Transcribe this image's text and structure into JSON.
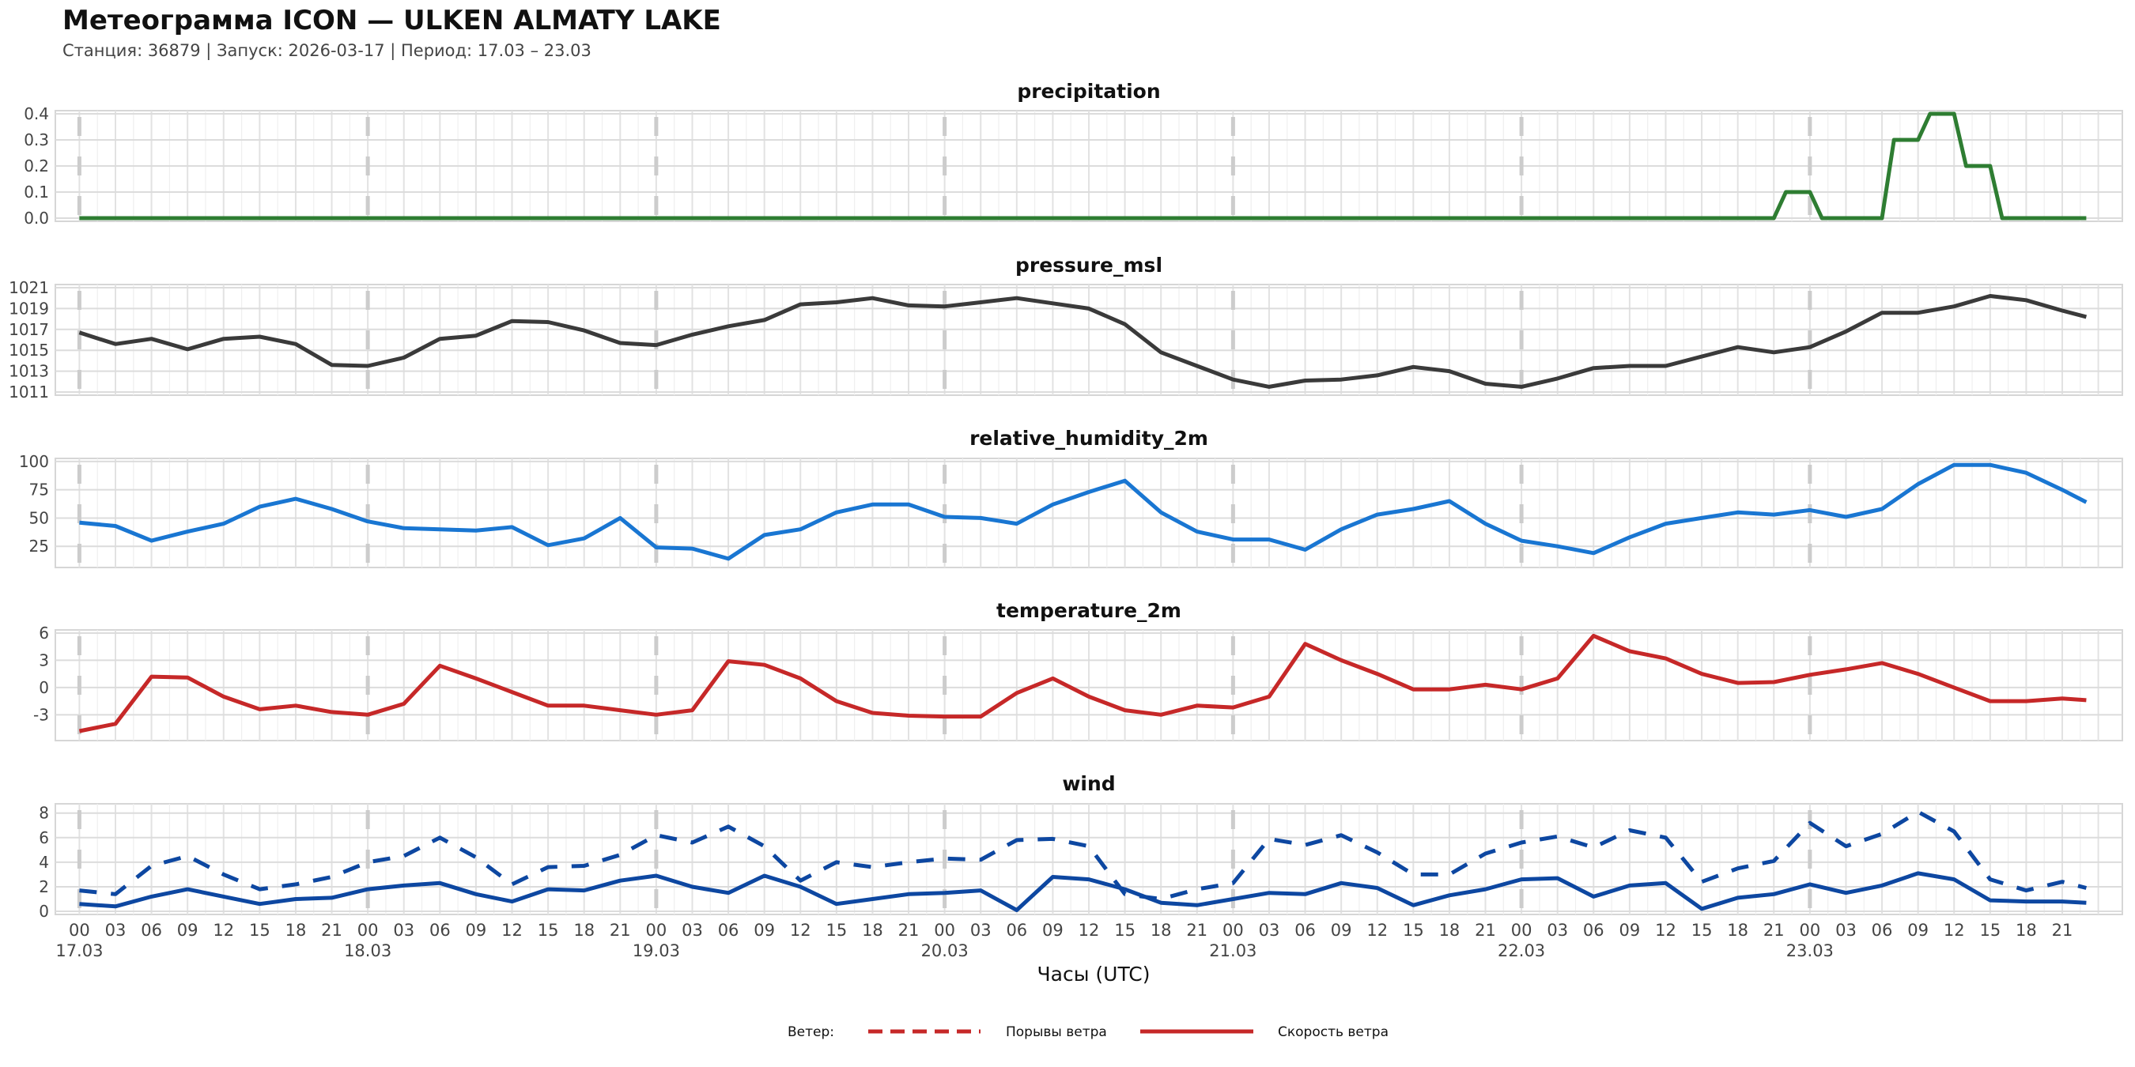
{
  "header": {
    "title": "Метеограмма ICON — ULKEN ALMATY LAKE",
    "subtitle": "Станция: 36879  | Запуск: 2026-03-17  | Период: 17.03 – 23.03"
  },
  "colors": {
    "precipitation": "#2e7d32",
    "pressure": "#3a3a3a",
    "humidity": "#1976d2",
    "temperature": "#c62828",
    "wind": "#0d47a1",
    "legend": "#c62828",
    "grid": "#e3e3e3",
    "day_separator": "#cccccc"
  },
  "chart_data": {
    "type": "line",
    "xlabel": "Часы (UTC)",
    "x_unit": "hours since 17.03 00 UTC",
    "x_range": [
      0,
      167
    ],
    "x_tick_labels": [
      "00",
      "03",
      "06",
      "09",
      "12",
      "15",
      "18",
      "21",
      "00",
      "03",
      "06",
      "09",
      "12",
      "15",
      "18",
      "21",
      "00",
      "03",
      "06",
      "09",
      "12",
      "15",
      "18",
      "21",
      "00",
      "03",
      "06",
      "09",
      "12",
      "15",
      "18",
      "21",
      "00",
      "03",
      "06",
      "09",
      "12",
      "15",
      "18",
      "21",
      "00",
      "03",
      "06",
      "09",
      "12",
      "15",
      "18",
      "21",
      "00",
      "03",
      "06",
      "09",
      "12",
      "15",
      "18",
      "21"
    ],
    "x_date_labels": [
      "17.03",
      "18.03",
      "19.03",
      "20.03",
      "21.03",
      "22.03",
      "23.03"
    ],
    "hours": [
      0,
      3,
      6,
      9,
      12,
      15,
      18,
      21,
      24,
      27,
      30,
      33,
      36,
      39,
      42,
      45,
      48,
      51,
      54,
      57,
      60,
      63,
      66,
      69,
      72,
      75,
      78,
      81,
      84,
      87,
      90,
      93,
      96,
      99,
      102,
      105,
      108,
      111,
      114,
      117,
      120,
      123,
      126,
      129,
      132,
      135,
      138,
      141,
      144,
      147,
      150,
      153,
      156,
      159,
      162,
      165,
      167
    ],
    "panels": [
      {
        "name": "precipitation",
        "title": "precipitation",
        "ylim": [
          0,
          0.4
        ],
        "yticks": [
          0.0,
          0.1,
          0.2,
          0.3,
          0.4
        ],
        "ytick_labels": [
          "0.0",
          "0.1",
          "0.2",
          "0.3",
          "0.4"
        ],
        "series": [
          {
            "name": "precipitation",
            "style": "solid",
            "x": [
              0,
              141,
              142,
              144,
              145,
              150,
              151,
              153,
              154,
              156,
              157,
              159,
              160,
              167
            ],
            "values": [
              0,
              0,
              0.1,
              0.1,
              0,
              0,
              0.3,
              0.3,
              0.4,
              0.4,
              0.2,
              0.2,
              0,
              0
            ]
          }
        ]
      },
      {
        "name": "pressure_msl",
        "title": "pressure_msl",
        "ylim": [
          1011,
          1021
        ],
        "yticks": [
          1011,
          1013,
          1015,
          1017,
          1019,
          1021
        ],
        "ytick_labels": [
          "1011",
          "1013",
          "1015",
          "1017",
          "1019",
          "1021"
        ],
        "series": [
          {
            "name": "pressure_msl",
            "style": "solid",
            "values": [
              1016.7,
              1015.6,
              1016.1,
              1015.1,
              1016.1,
              1016.3,
              1015.6,
              1013.6,
              1013.5,
              1014.3,
              1016.1,
              1016.4,
              1017.8,
              1017.7,
              1016.9,
              1015.7,
              1015.5,
              1016.5,
              1017.3,
              1017.9,
              1019.4,
              1019.6,
              1020.0,
              1019.3,
              1019.2,
              1019.6,
              1020.0,
              1019.5,
              1019.0,
              1017.5,
              1014.8,
              1013.5,
              1012.2,
              1011.5,
              1012.1,
              1012.2,
              1012.6,
              1013.4,
              1013.0,
              1011.8,
              1011.5,
              1012.3,
              1013.3,
              1013.5,
              1013.5,
              1014.4,
              1015.3,
              1014.8,
              1015.3,
              1016.8,
              1018.6,
              1018.6,
              1019.2,
              1020.2,
              1019.8,
              1018.8,
              1018.2
            ]
          }
        ]
      },
      {
        "name": "relative_humidity_2m",
        "title": "relative_humidity_2m",
        "ylim": [
          9,
          100
        ],
        "yticks": [
          25,
          50,
          75,
          100
        ],
        "ytick_labels": [
          "25",
          "50",
          "75",
          "100"
        ],
        "series": [
          {
            "name": "relative_humidity_2m",
            "style": "solid",
            "values": [
              46,
              43,
              30,
              38,
              45,
              60,
              67,
              58,
              47,
              41,
              40,
              39,
              42,
              26,
              32,
              50,
              24,
              23,
              14,
              35,
              40,
              55,
              62,
              62,
              51,
              50,
              45,
              62,
              73,
              83,
              55,
              38,
              31,
              31,
              22,
              40,
              53,
              58,
              65,
              45,
              30,
              25,
              19,
              33,
              45,
              50,
              55,
              53,
              57,
              51,
              58,
              80,
              97,
              97,
              90,
              75,
              64
            ]
          }
        ]
      },
      {
        "name": "temperature_2m",
        "title": "temperature_2m",
        "ylim": [
          -5.5,
          6
        ],
        "yticks": [
          -3,
          0,
          3,
          6
        ],
        "ytick_labels": [
          "-3",
          "0",
          "3",
          "6"
        ],
        "series": [
          {
            "name": "temperature_2m",
            "style": "solid",
            "values": [
              -4.8,
              -4.0,
              1.2,
              1.1,
              -1.0,
              -2.4,
              -2.0,
              -2.7,
              -3.0,
              -1.8,
              2.4,
              1.0,
              -0.5,
              -2.0,
              -2.0,
              -2.5,
              -3.0,
              -2.5,
              2.9,
              2.5,
              1.0,
              -1.5,
              -2.8,
              -3.1,
              -3.2,
              -3.2,
              -0.6,
              1.0,
              -1.0,
              -2.5,
              -3.0,
              -2.0,
              -2.2,
              -1.0,
              4.8,
              3.0,
              1.5,
              -0.2,
              -0.2,
              0.3,
              -0.2,
              1.0,
              5.7,
              4.0,
              3.2,
              1.5,
              0.5,
              0.6,
              1.4,
              2.0,
              2.7,
              1.5,
              0.0,
              -1.5,
              -1.5,
              -1.2,
              -1.4
            ]
          }
        ]
      },
      {
        "name": "wind",
        "title": "wind",
        "ylim": [
          0,
          8.5
        ],
        "yticks": [
          0,
          2,
          4,
          6,
          8
        ],
        "ytick_labels": [
          "0",
          "2",
          "4",
          "6",
          "8"
        ],
        "series": [
          {
            "name": "Порывы ветра",
            "style": "dashed",
            "values": [
              1.7,
              1.4,
              3.7,
              4.5,
              3.0,
              1.8,
              2.2,
              2.8,
              4.0,
              4.5,
              6.0,
              4.4,
              2.2,
              3.6,
              3.7,
              4.6,
              6.2,
              5.6,
              6.9,
              5.3,
              2.5,
              4.0,
              3.6,
              4.0,
              4.3,
              4.2,
              5.8,
              5.9,
              5.3,
              1.4,
              1.0,
              1.8,
              2.3,
              5.9,
              5.4,
              6.2,
              4.8,
              3.0,
              3.0,
              4.7,
              5.6,
              6.1,
              5.2,
              6.6,
              6.0,
              2.4,
              3.5,
              4.1,
              7.2,
              5.3,
              6.3,
              8.1,
              6.5,
              2.6,
              1.7,
              2.4,
              1.9
            ]
          },
          {
            "name": "Скорость ветра",
            "style": "solid",
            "values": [
              0.6,
              0.4,
              1.2,
              1.8,
              1.2,
              0.6,
              1.0,
              1.1,
              1.8,
              2.1,
              2.3,
              1.4,
              0.8,
              1.8,
              1.7,
              2.5,
              2.9,
              2.0,
              1.5,
              2.9,
              2.0,
              0.6,
              1.0,
              1.4,
              1.5,
              1.7,
              0.1,
              2.8,
              2.6,
              1.8,
              0.7,
              0.5,
              1.0,
              1.5,
              1.4,
              2.3,
              1.9,
              0.5,
              1.3,
              1.8,
              2.6,
              2.7,
              1.2,
              2.1,
              2.3,
              0.2,
              1.1,
              1.4,
              2.2,
              1.5,
              2.1,
              3.1,
              2.6,
              0.9,
              0.8,
              0.8,
              0.7
            ]
          }
        ]
      }
    ],
    "legend": {
      "title": "Ветер:",
      "placement": "bottom-center",
      "entries": [
        {
          "label": "Порывы ветра",
          "style": "dashed"
        },
        {
          "label": "Скорость ветра",
          "style": "solid"
        }
      ]
    },
    "grid": true
  }
}
